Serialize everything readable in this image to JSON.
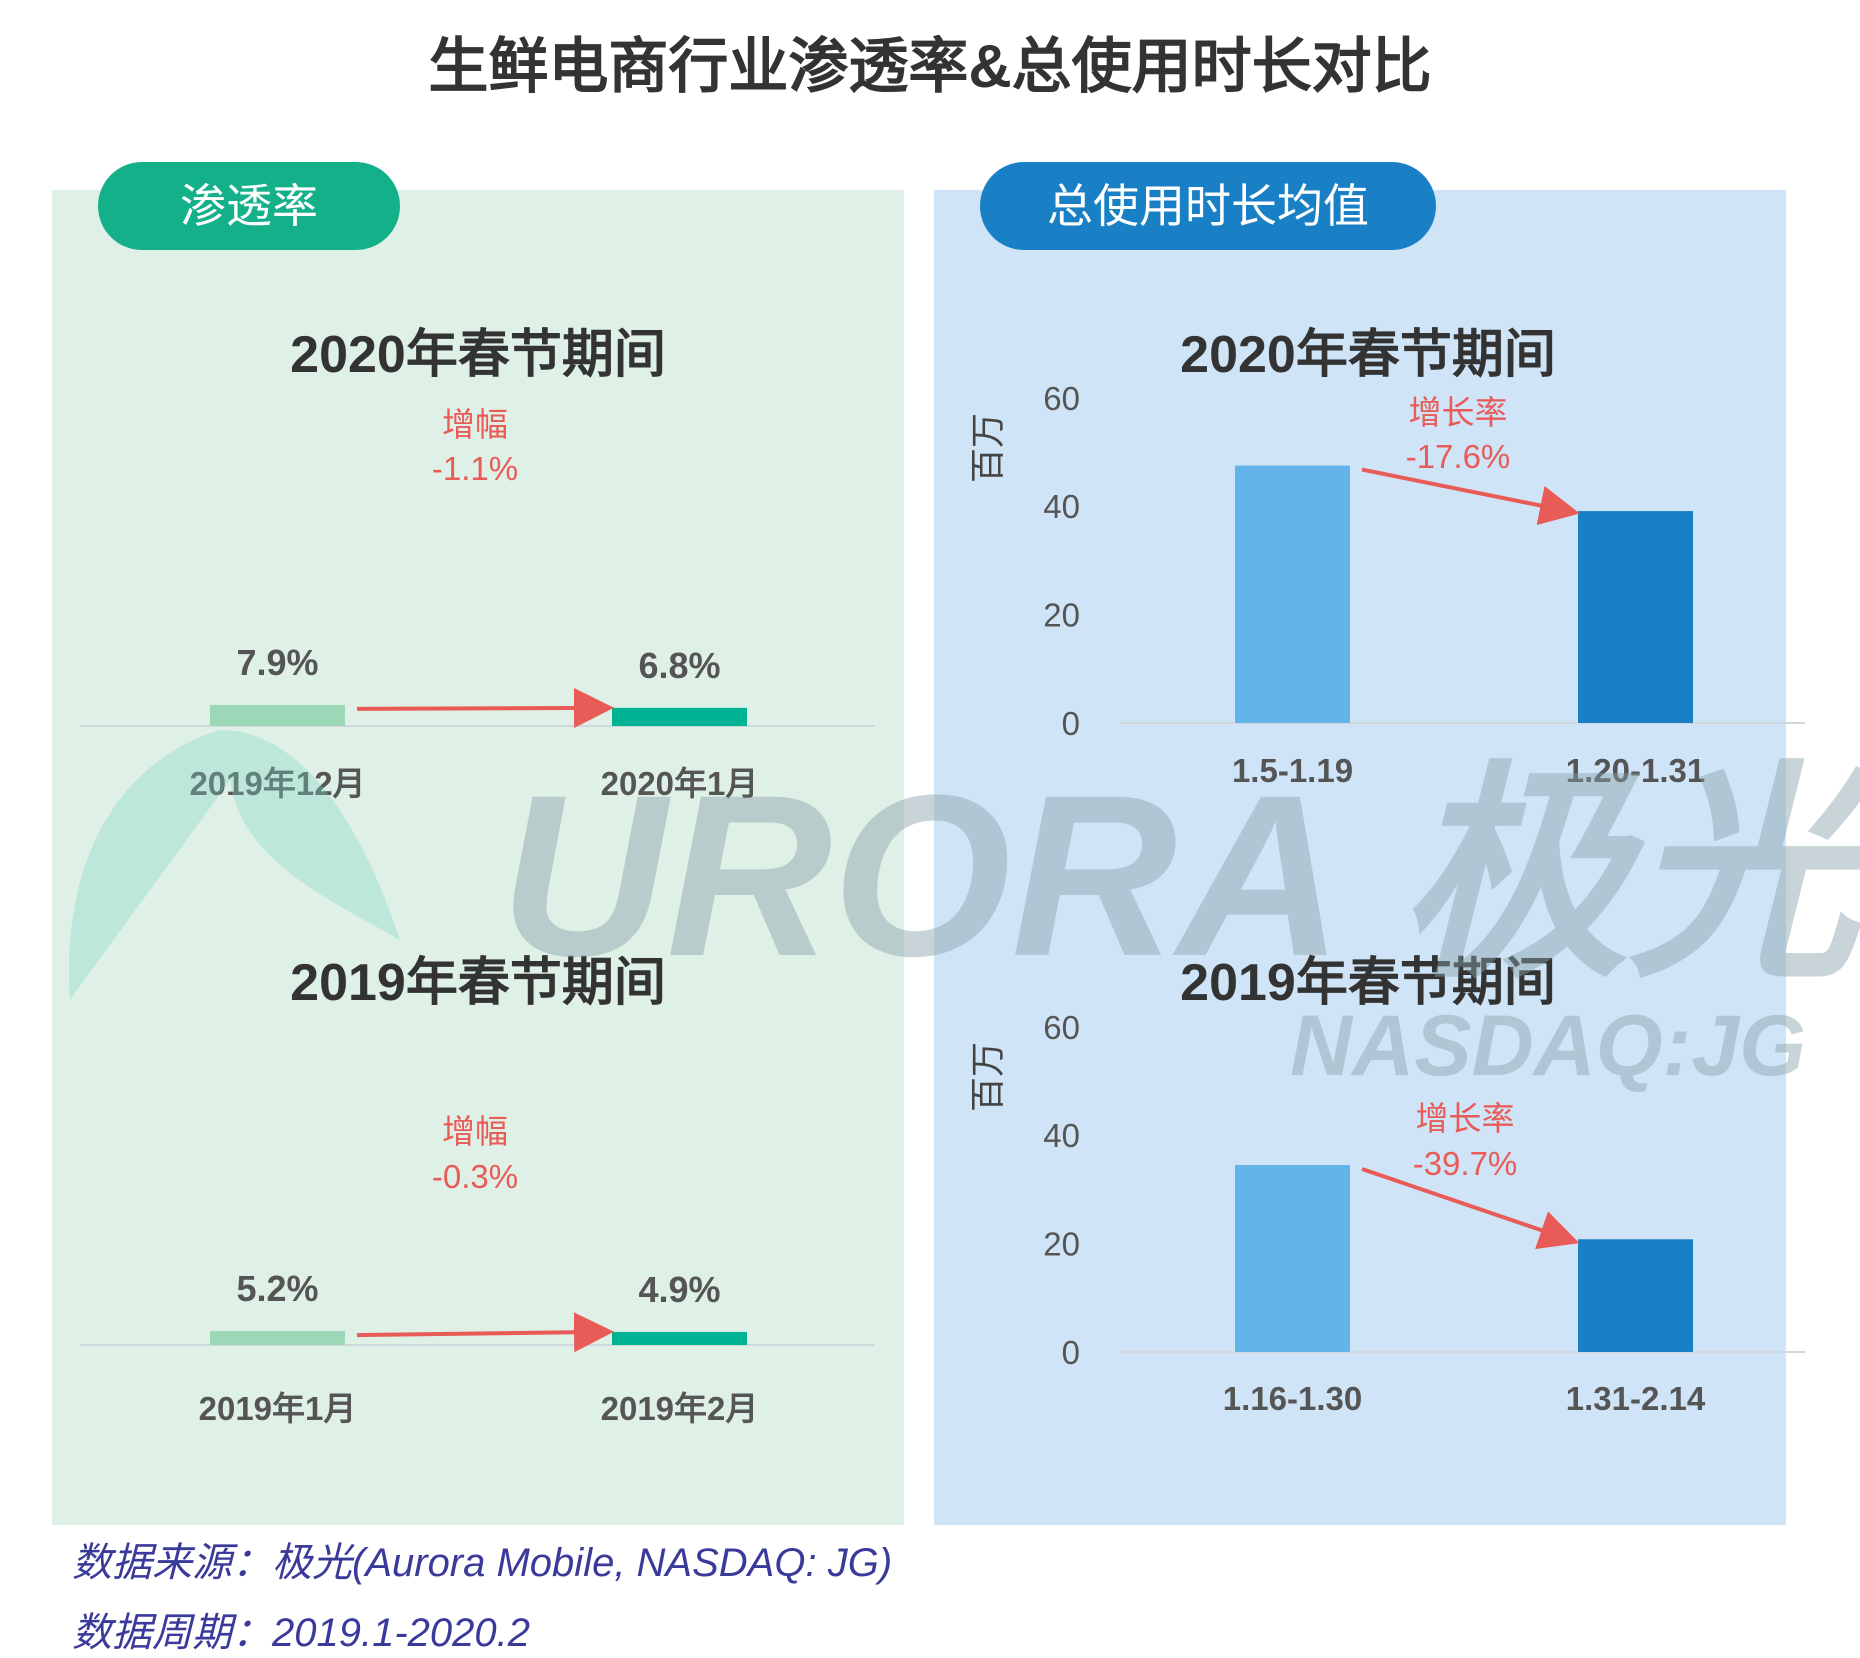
{
  "title": "生鲜电商行业渗透率&总使用时长对比",
  "left_panel": {
    "label": "渗透率"
  },
  "right_panel": {
    "label": "总使用时长均值"
  },
  "watermark": {
    "brand": "URORA 极光",
    "ticker": "NASDAQ:JG"
  },
  "footer": {
    "source": "数据来源：极光(Aurora Mobile, NASDAQ: JG)",
    "period": "数据周期：2019.1-2020.2"
  },
  "colors": {
    "green_light": "#9cd8b7",
    "green_dark": "#00b394",
    "blue_light": "#63b4ea",
    "blue_dark": "#1a80c6",
    "arrow": "#e85b57"
  },
  "chart_data": [
    {
      "type": "bar",
      "title": "2020年春节期间",
      "categories": [
        "2019年12月",
        "2020年1月"
      ],
      "values": [
        7.9,
        6.8
      ],
      "value_labels": [
        "7.9%",
        "6.8%"
      ],
      "annotation": {
        "label": "增幅",
        "value": "-1.1%"
      }
    },
    {
      "type": "bar",
      "title": "2019年春节期间",
      "categories": [
        "2019年1月",
        "2019年2月"
      ],
      "values": [
        5.2,
        4.9
      ],
      "value_labels": [
        "5.2%",
        "4.9%"
      ],
      "annotation": {
        "label": "增幅",
        "value": "-0.3%"
      }
    },
    {
      "type": "bar",
      "title": "2020年春节期间",
      "categories": [
        "1.5-1.19",
        "1.20-1.31"
      ],
      "values": [
        47.5,
        39.1
      ],
      "ylabel": "百万",
      "ylim": [
        0,
        60
      ],
      "yticks": [
        0,
        20,
        40,
        60
      ],
      "annotation": {
        "label": "增长率",
        "value": "-17.6%"
      }
    },
    {
      "type": "bar",
      "title": "2019年春节期间",
      "categories": [
        "1.16-1.30",
        "1.31-2.14"
      ],
      "values": [
        34.5,
        20.8
      ],
      "ylabel": "百万",
      "ylim": [
        0,
        60
      ],
      "yticks": [
        0,
        20,
        40,
        60
      ],
      "annotation": {
        "label": "增长率",
        "value": "-39.7%"
      }
    }
  ]
}
